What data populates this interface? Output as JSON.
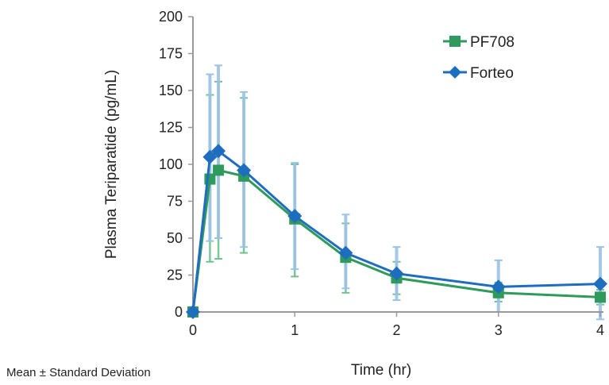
{
  "chart_data": {
    "type": "line",
    "title": "",
    "xlabel": "Time (hr)",
    "ylabel": "Plasma Teriparatide (pg/mL)",
    "footnote": "Mean ± Standard Deviation",
    "xlim": [
      0,
      4
    ],
    "ylim": [
      0,
      200
    ],
    "xticks": [
      "0",
      "1",
      "2",
      "3",
      "4"
    ],
    "yticks": [
      "0",
      "25",
      "50",
      "75",
      "100",
      "125",
      "150",
      "175",
      "200"
    ],
    "grid": false,
    "legend_position": "top-right",
    "x": [
      0,
      0.167,
      0.25,
      0.5,
      1,
      1.5,
      2,
      3,
      4
    ],
    "series": [
      {
        "name": "PF708",
        "marker": "square",
        "color": "#2e9a5c",
        "error_color": "#6cc48c",
        "values": [
          0,
          90,
          96,
          92,
          63,
          37,
          23,
          13,
          10
        ],
        "upper": [
          0,
          147,
          156,
          145,
          100,
          60,
          34,
          20,
          15
        ],
        "lower": [
          0,
          34,
          36,
          40,
          24,
          13,
          12,
          7,
          5
        ]
      },
      {
        "name": "Forteo",
        "marker": "diamond",
        "color": "#1f6dbf",
        "error_color": "#9cc3e6",
        "values": [
          0,
          105,
          109,
          96,
          65,
          40,
          26,
          17,
          19
        ],
        "upper": [
          0,
          161,
          167,
          149,
          101,
          66,
          44,
          35,
          44
        ],
        "lower": [
          0,
          48,
          50,
          44,
          29,
          16,
          8,
          0,
          -5
        ]
      }
    ]
  }
}
